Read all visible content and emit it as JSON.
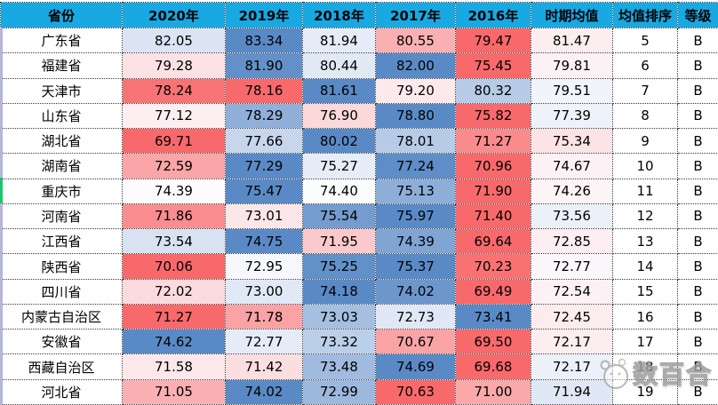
{
  "table": {
    "columns": [
      "省份",
      "2020年",
      "2019年",
      "2018年",
      "2017年",
      "2016年",
      "时期均值",
      "均值排序",
      "等级"
    ],
    "rows": [
      {
        "province": "广东省",
        "values": [
          "82.05",
          "83.34",
          "81.94",
          "80.55",
          "79.47",
          "81.47"
        ],
        "colors": [
          "#DAE4F3",
          "#5A8AC6",
          "#E5ECF7",
          "#FAB0B3",
          "#F8696B",
          "#FCEDF0"
        ],
        "rank": "5",
        "grade": "B"
      },
      {
        "province": "福建省",
        "values": [
          "79.28",
          "81.90",
          "80.44",
          "82.00",
          "75.45",
          "79.81"
        ],
        "colors": [
          "#FBE1E4",
          "#6390C9",
          "#E1E9F5",
          "#5A8AC6",
          "#F8696B",
          "#FCF2F5"
        ],
        "rank": "6",
        "grade": "B"
      },
      {
        "province": "天津市",
        "values": [
          "78.24",
          "78.16",
          "81.61",
          "79.20",
          "80.32",
          "79.51"
        ],
        "colors": [
          "#F87375",
          "#F8696B",
          "#5A8AC6",
          "#FBE9EC",
          "#B7CBE7",
          "#F1F4FB"
        ],
        "rank": "7",
        "grade": "B"
      },
      {
        "province": "山东省",
        "values": [
          "77.12",
          "78.29",
          "76.90",
          "78.80",
          "75.82",
          "77.39"
        ],
        "colors": [
          "#FCEEF1",
          "#90B0D9",
          "#FBD8DA",
          "#5A8AC6",
          "#F8696B",
          "#EEF2FA"
        ],
        "rank": "8",
        "grade": "B"
      },
      {
        "province": "湖北省",
        "values": [
          "69.71",
          "77.66",
          "80.02",
          "78.01",
          "71.27",
          "75.34"
        ],
        "colors": [
          "#F8696B",
          "#C7D6EC",
          "#5A8AC6",
          "#B7CBE7",
          "#F98B8D",
          "#FBE3E6"
        ],
        "rank": "9",
        "grade": "B"
      },
      {
        "province": "湖南省",
        "values": [
          "72.59",
          "77.29",
          "75.27",
          "77.24",
          "70.96",
          "74.67"
        ],
        "colors": [
          "#FAA5A7",
          "#5A8AC6",
          "#E7EDF8",
          "#5E8DC7",
          "#F8696B",
          "#FCF1F4"
        ],
        "rank": "10",
        "grade": "B"
      },
      {
        "province": "重庆市",
        "values": [
          "74.39",
          "75.47",
          "74.40",
          "75.13",
          "71.90",
          "74.26"
        ],
        "colors": [
          "#FCFCFF",
          "#5A8AC6",
          "#FBFCFE",
          "#8DAED8",
          "#F8696B",
          "#FCF4F7"
        ],
        "rank": "11",
        "grade": "B"
      },
      {
        "province": "河南省",
        "values": [
          "71.86",
          "73.01",
          "75.54",
          "75.97",
          "71.40",
          "73.56"
        ],
        "colors": [
          "#F98D8F",
          "#FBE7E9",
          "#749CCF",
          "#5A8AC6",
          "#F8696B",
          "#EBF0F9"
        ],
        "rank": "12",
        "grade": "B"
      },
      {
        "province": "江西省",
        "values": [
          "73.54",
          "74.75",
          "71.95",
          "74.39",
          "69.64",
          "72.85"
        ],
        "colors": [
          "#D8E3F2",
          "#5A8AC6",
          "#FBC9CB",
          "#80A4D3",
          "#F8696B",
          "#FCEEF1"
        ],
        "rank": "13",
        "grade": "B"
      },
      {
        "province": "陕西省",
        "values": [
          "70.06",
          "72.95",
          "75.25",
          "75.37",
          "70.23",
          "72.77"
        ],
        "colors": [
          "#F8696B",
          "#F6F8FD",
          "#6290C9",
          "#5A8AC6",
          "#F87274",
          "#FCF7FA"
        ],
        "rank": "14",
        "grade": "B"
      },
      {
        "province": "四川省",
        "values": [
          "72.02",
          "73.00",
          "74.18",
          "74.02",
          "69.49",
          "72.54"
        ],
        "colors": [
          "#FBDADD",
          "#E2E9F6",
          "#5A8AC6",
          "#6C97CC",
          "#F8696B",
          "#FCF2F5"
        ],
        "rank": "15",
        "grade": "B"
      },
      {
        "province": "内蒙古自治区",
        "values": [
          "71.27",
          "71.78",
          "73.03",
          "72.73",
          "73.41",
          "72.45"
        ],
        "colors": [
          "#F8696B",
          "#FAA2A4",
          "#A5BFE0",
          "#E0E8F5",
          "#5A8AC6",
          "#FCECEF"
        ],
        "rank": "16",
        "grade": "B"
      },
      {
        "province": "安徽省",
        "values": [
          "74.62",
          "72.77",
          "73.32",
          "70.67",
          "69.50",
          "72.17"
        ],
        "colors": [
          "#5A8AC6",
          "#E5ECF7",
          "#BCCFE9",
          "#FAA3A5",
          "#F8696B",
          "#FCEDF0"
        ],
        "rank": "17",
        "grade": "B"
      },
      {
        "province": "西藏自治区",
        "values": [
          "71.58",
          "71.42",
          "73.48",
          "74.69",
          "69.68",
          "72.17"
        ],
        "colors": [
          "#FCE8EB",
          "#FBDEE0",
          "#A0BBDF",
          "#5A8AC6",
          "#F8696B",
          "#EBF0F9"
        ],
        "rank": "18",
        "grade": "B"
      },
      {
        "province": "河北省",
        "values": [
          "71.05",
          "74.02",
          "72.99",
          "70.63",
          "71.00",
          "71.94"
        ],
        "colors": [
          "#FAB0B3",
          "#5A8AC6",
          "#9CB8DD",
          "#F8696B",
          "#FAA8AA",
          "#E0E8F5"
        ],
        "rank": "19",
        "grade": "B"
      }
    ]
  },
  "watermark": {
    "text": "数百合"
  },
  "colors": {
    "header_bg": "#18A8E2",
    "grid_border": "#3A3A3A",
    "edge_stripe": "#B5B7D8",
    "edge_stripe_green": "#1EC46F",
    "watermark_grey": "#9D9D9D",
    "scale_low_red": "#F8696B",
    "scale_mid_white": "#FCFCFF",
    "scale_high_blue": "#5A8AC6"
  },
  "chart_data": {
    "type": "heatmap",
    "title": "",
    "columns": [
      "省份",
      "2020年",
      "2019年",
      "2018年",
      "2017年",
      "2016年",
      "时期均值",
      "均值排序",
      "等级"
    ],
    "year_categories": [
      "2020",
      "2019",
      "2018",
      "2017",
      "2016"
    ],
    "rows": [
      {
        "province": "广东省",
        "values": [
          82.05,
          83.34,
          81.94,
          80.55,
          79.47
        ],
        "period_mean": 81.47,
        "rank": 5,
        "grade": "B"
      },
      {
        "province": "福建省",
        "values": [
          79.28,
          81.9,
          80.44,
          82.0,
          75.45
        ],
        "period_mean": 79.81,
        "rank": 6,
        "grade": "B"
      },
      {
        "province": "天津市",
        "values": [
          78.24,
          78.16,
          81.61,
          79.2,
          80.32
        ],
        "period_mean": 79.51,
        "rank": 7,
        "grade": "B"
      },
      {
        "province": "山东省",
        "values": [
          77.12,
          78.29,
          76.9,
          78.8,
          75.82
        ],
        "period_mean": 77.39,
        "rank": 8,
        "grade": "B"
      },
      {
        "province": "湖北省",
        "values": [
          69.71,
          77.66,
          80.02,
          78.01,
          71.27
        ],
        "period_mean": 75.34,
        "rank": 9,
        "grade": "B"
      },
      {
        "province": "湖南省",
        "values": [
          72.59,
          77.29,
          75.27,
          77.24,
          70.96
        ],
        "period_mean": 74.67,
        "rank": 10,
        "grade": "B"
      },
      {
        "province": "重庆市",
        "values": [
          74.39,
          75.47,
          74.4,
          75.13,
          71.9
        ],
        "period_mean": 74.26,
        "rank": 11,
        "grade": "B"
      },
      {
        "province": "河南省",
        "values": [
          71.86,
          73.01,
          75.54,
          75.97,
          71.4
        ],
        "period_mean": 73.56,
        "rank": 12,
        "grade": "B"
      },
      {
        "province": "江西省",
        "values": [
          73.54,
          74.75,
          71.95,
          74.39,
          69.64
        ],
        "period_mean": 72.85,
        "rank": 13,
        "grade": "B"
      },
      {
        "province": "陕西省",
        "values": [
          70.06,
          72.95,
          75.25,
          75.37,
          70.23
        ],
        "period_mean": 72.77,
        "rank": 14,
        "grade": "B"
      },
      {
        "province": "四川省",
        "values": [
          72.02,
          73.0,
          74.18,
          74.02,
          69.49
        ],
        "period_mean": 72.54,
        "rank": 15,
        "grade": "B"
      },
      {
        "province": "内蒙古自治区",
        "values": [
          71.27,
          71.78,
          73.03,
          72.73,
          73.41
        ],
        "period_mean": 72.45,
        "rank": 16,
        "grade": "B"
      },
      {
        "province": "安徽省",
        "values": [
          74.62,
          72.77,
          73.32,
          70.67,
          69.5
        ],
        "period_mean": 72.17,
        "rank": 17,
        "grade": "B"
      },
      {
        "province": "西藏自治区",
        "values": [
          71.58,
          71.42,
          73.48,
          74.69,
          69.68
        ],
        "period_mean": 72.17,
        "rank": 18,
        "grade": "B"
      },
      {
        "province": "河北省",
        "values": [
          71.05,
          74.02,
          72.99,
          70.63,
          71.0
        ],
        "period_mean": 71.94,
        "rank": 19,
        "grade": "B"
      }
    ],
    "legend_position": "none",
    "grid": true,
    "color_scale_note": "3-color scale applied per row across the 5 year values + period mean: row min = #F8696B (red), row median = #FCFCFF (white), row max = #5A8AC6 (blue)"
  }
}
